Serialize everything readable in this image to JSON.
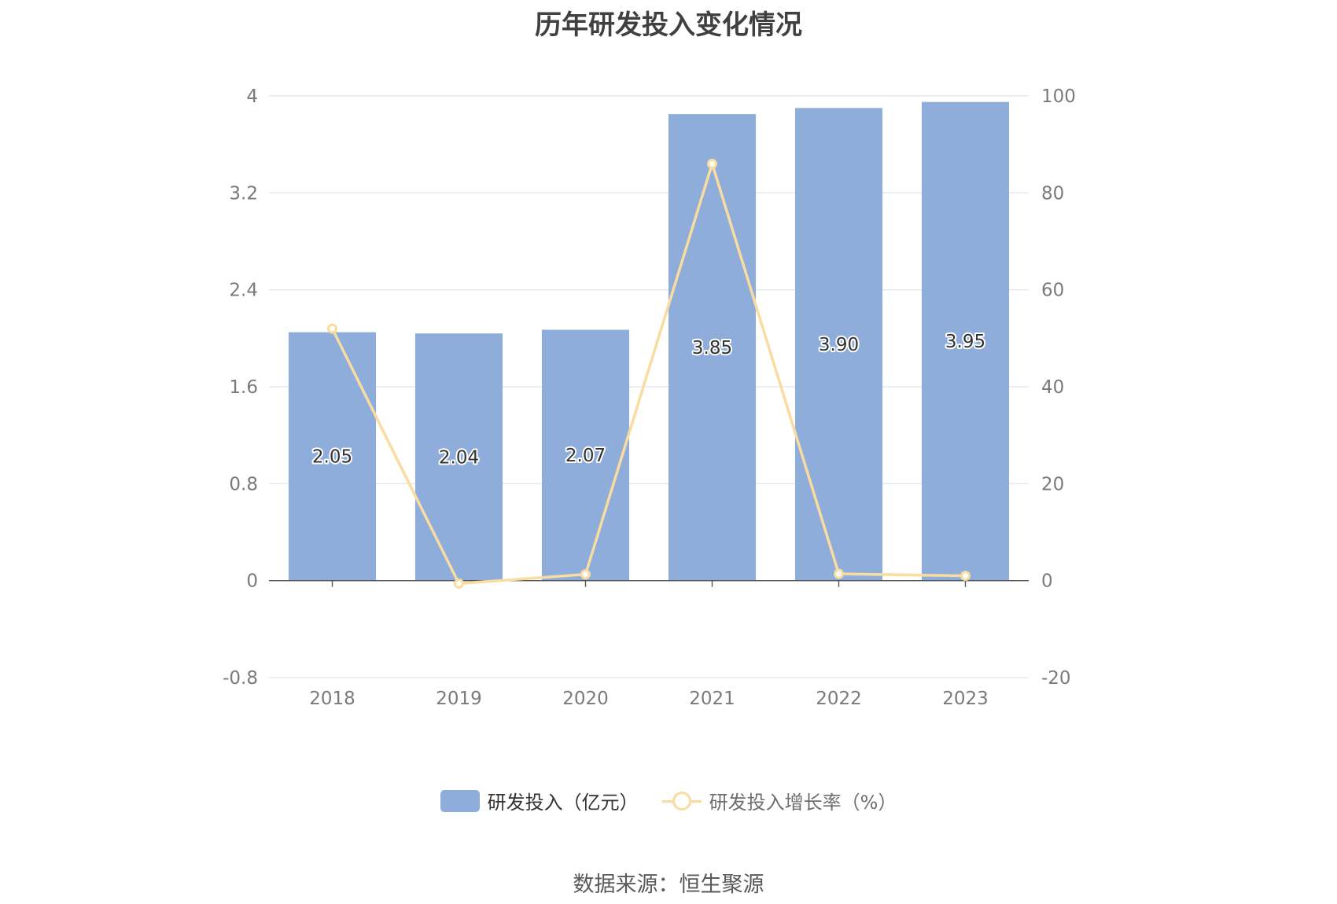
{
  "title": "历年研发投入变化情况",
  "source_text": "数据来源：恒生聚源",
  "legend": {
    "bar_label": "研发投入（亿元）",
    "line_label": "研发投入增长率（%）"
  },
  "colors": {
    "bar": "#8eaddb",
    "line": "#f9dca0",
    "grid": "#dde3f0",
    "axis": "#555555"
  },
  "chart_data": {
    "type": "bar",
    "categories": [
      "2018",
      "2019",
      "2020",
      "2021",
      "2022",
      "2023"
    ],
    "series": [
      {
        "name": "研发投入（亿元）",
        "type": "bar",
        "axis": "left",
        "values": [
          2.05,
          2.04,
          2.07,
          3.85,
          3.9,
          3.95
        ],
        "labels": [
          "2.05",
          "2.04",
          "2.07",
          "3.85",
          "3.90",
          "3.95"
        ]
      },
      {
        "name": "研发投入增长率（%）",
        "type": "line",
        "axis": "right",
        "values": [
          52.0,
          -0.6,
          1.3,
          86.0,
          1.4,
          1.0
        ]
      }
    ],
    "y_left": {
      "ylim": [
        -0.8,
        4
      ],
      "ticks": [
        "-0.8",
        "0",
        "0.8",
        "1.6",
        "2.4",
        "3.2",
        "4"
      ]
    },
    "y_right": {
      "ylim": [
        -20,
        100
      ],
      "ticks": [
        "-20",
        "0",
        "20",
        "40",
        "60",
        "80",
        "100"
      ]
    },
    "grid": true,
    "legend_position": "bottom-center"
  }
}
